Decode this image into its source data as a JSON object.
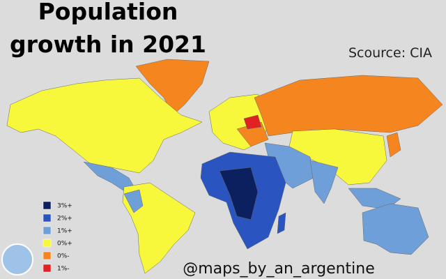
{
  "header": {
    "title_lines": [
      "Population",
      "growth in 2021"
    ],
    "source": "Scource: CIA"
  },
  "legend": {
    "items": [
      {
        "label": "3%+",
        "color": "#0c1f5e"
      },
      {
        "label": "2%+",
        "color": "#2a55c0"
      },
      {
        "label": "1%+",
        "color": "#6f9fd8"
      },
      {
        "label": "0%+",
        "color": "#f7f73c"
      },
      {
        "label": "0%-",
        "color": "#f5861f"
      },
      {
        "label": "1%-",
        "color": "#e02222"
      }
    ]
  },
  "footer": {
    "credit": "@maps_by_an_argentine"
  }
}
